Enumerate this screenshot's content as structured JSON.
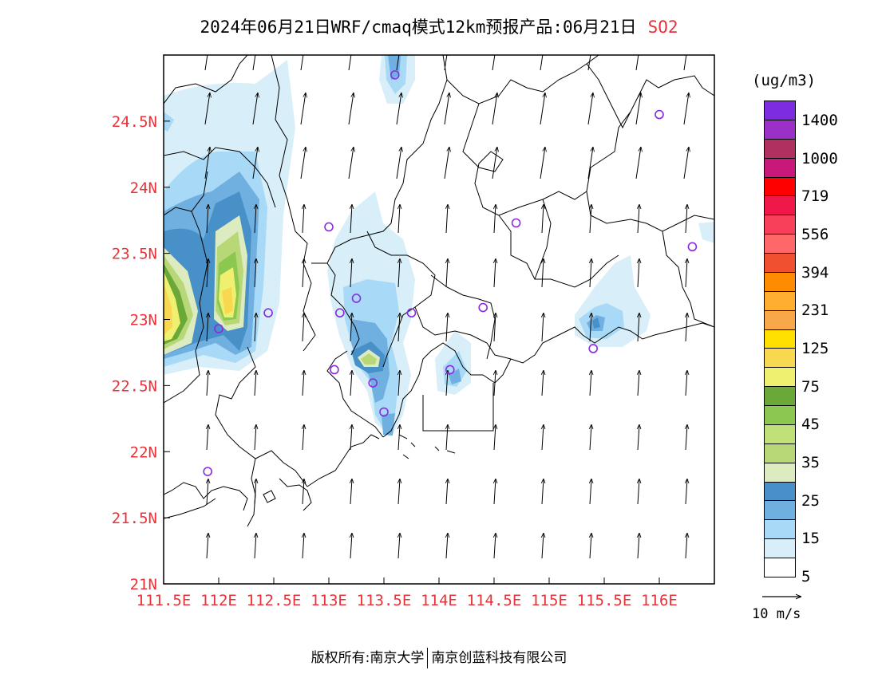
{
  "title": {
    "main": "2024年06月21日WRF/cmaq模式12km预报产品:06月21日",
    "species": "SO2",
    "species_color": "#e8333a"
  },
  "axes": {
    "x_ticks": [
      "111.5E",
      "112E",
      "112.5E",
      "113E",
      "113.5E",
      "114E",
      "114.5E",
      "115E",
      "115.5E",
      "116E"
    ],
    "x_values": [
      111.5,
      112.0,
      112.5,
      113.0,
      113.5,
      114.0,
      114.5,
      115.0,
      115.5,
      116.0
    ],
    "y_ticks": [
      "24.5N",
      "24N",
      "23.5N",
      "23N",
      "22.5N",
      "22N",
      "21.5N",
      "21N"
    ],
    "y_values": [
      24.5,
      24.0,
      23.5,
      23.0,
      22.5,
      22.0,
      21.5,
      21.0
    ],
    "lon_range": [
      111.5,
      116.5
    ],
    "lat_range": [
      21.0,
      25.0
    ],
    "label_color": "#e8333a"
  },
  "legend": {
    "unit": "(ug/m3)",
    "labels": [
      "1400",
      "1000",
      "719",
      "556",
      "394",
      "231",
      "125",
      "75",
      "45",
      "35",
      "25",
      "15",
      "5"
    ],
    "colors": [
      "#7d2ce0",
      "#9b30c8",
      "#b03060",
      "#c8187a",
      "#ff0000",
      "#f01848",
      "#f8405a",
      "#ff6868",
      "#f05030",
      "#ff8c00",
      "#ffae30",
      "#f8a848",
      "#ffe000",
      "#f8d850",
      "#f0f070",
      "#6aa838",
      "#8cc850",
      "#c0e078",
      "#b8d878",
      "#dcecc0",
      "#4890c8",
      "#70b0e0",
      "#a8daf8",
      "#d8eef8",
      "#ffffff"
    ]
  },
  "wind_reference": {
    "label": "10 m/s"
  },
  "sites": [
    {
      "lon": 113.6,
      "lat": 24.85
    },
    {
      "lon": 116.0,
      "lat": 24.55
    },
    {
      "lon": 113.0,
      "lat": 23.7
    },
    {
      "lon": 114.7,
      "lat": 23.73
    },
    {
      "lon": 116.3,
      "lat": 23.55
    },
    {
      "lon": 113.25,
      "lat": 23.16
    },
    {
      "lon": 112.45,
      "lat": 23.05
    },
    {
      "lon": 113.1,
      "lat": 23.05
    },
    {
      "lon": 113.75,
      "lat": 23.05
    },
    {
      "lon": 114.4,
      "lat": 23.09
    },
    {
      "lon": 112.0,
      "lat": 22.93
    },
    {
      "lon": 115.4,
      "lat": 22.78
    },
    {
      "lon": 113.05,
      "lat": 22.62
    },
    {
      "lon": 113.4,
      "lat": 22.52
    },
    {
      "lon": 114.1,
      "lat": 22.62
    },
    {
      "lon": 113.5,
      "lat": 22.3
    },
    {
      "lon": 111.9,
      "lat": 21.85
    }
  ],
  "footer": {
    "left": "版权所有:南京大学",
    "right": "南京创蓝科技有限公司"
  }
}
